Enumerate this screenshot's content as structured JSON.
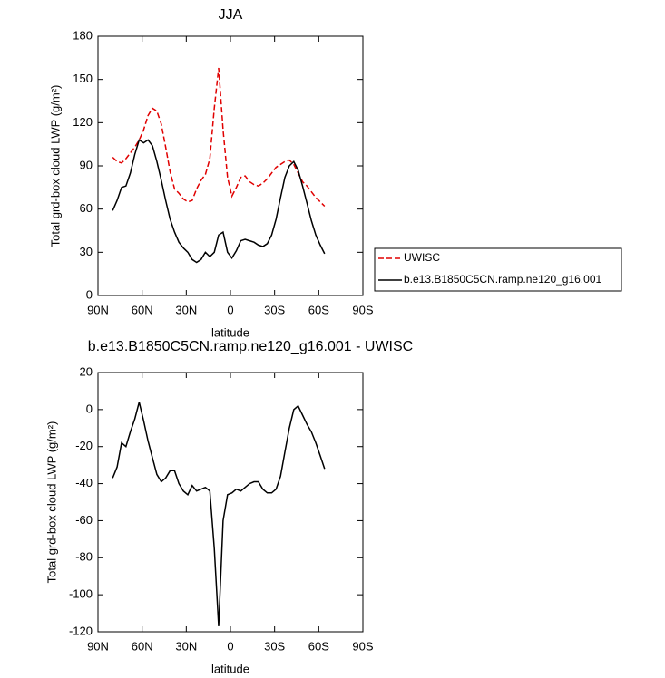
{
  "chart_data": [
    {
      "type": "line",
      "title": "JJA",
      "xlabel": "latitude",
      "ylabel": "Total grd-box cloud LWP (g/m²)",
      "x": [
        80,
        77,
        74,
        71,
        68,
        65,
        62,
        59,
        56,
        53,
        50,
        47,
        44,
        41,
        38,
        35,
        32,
        29,
        26,
        23,
        20,
        17,
        14,
        11,
        8,
        5,
        2,
        -1,
        -4,
        -7,
        -10,
        -13,
        -16,
        -19,
        -22,
        -25,
        -28,
        -31,
        -34,
        -37,
        -40,
        -43,
        -46,
        -49,
        -52,
        -55,
        -58,
        -61,
        -64
      ],
      "series": [
        {
          "name": "UWISC",
          "color": "#e00000",
          "dashed": true,
          "values": [
            96,
            93,
            92,
            95,
            99,
            103,
            108,
            115,
            125,
            130,
            128,
            119,
            103,
            86,
            74,
            71,
            67,
            65,
            66,
            74,
            80,
            84,
            95,
            130,
            158,
            115,
            82,
            69,
            75,
            82,
            83,
            79,
            77,
            76,
            78,
            81,
            85,
            89,
            91,
            93,
            94,
            91,
            85,
            79,
            76,
            72,
            68,
            65,
            62
          ]
        },
        {
          "name": "b.e13.B1850C5CN.ramp.ne120_g16.001",
          "color": "#000000",
          "dashed": false,
          "values": [
            59,
            66,
            75,
            76,
            85,
            98,
            108,
            106,
            108,
            104,
            93,
            80,
            66,
            53,
            44,
            37,
            33,
            30,
            25,
            23,
            25,
            30,
            27,
            30,
            42,
            44,
            30,
            26,
            31,
            38,
            39,
            38,
            37,
            35,
            34,
            36,
            42,
            53,
            68,
            82,
            90,
            93,
            87,
            76,
            64,
            52,
            42,
            35,
            29
          ]
        }
      ],
      "xlim": [
        90,
        -90
      ],
      "xticks": [
        {
          "value": 90,
          "label": "90N"
        },
        {
          "value": 60,
          "label": "60N"
        },
        {
          "value": 30,
          "label": "30N"
        },
        0,
        {
          "value": -30,
          "label": "30S"
        },
        {
          "value": -60,
          "label": "60S"
        },
        {
          "value": -90,
          "label": "90S"
        }
      ],
      "ylim": [
        0,
        180
      ],
      "yticks": [
        0,
        30,
        60,
        90,
        120,
        150,
        180
      ],
      "legend": "right"
    },
    {
      "type": "line",
      "title": "b.e13.B1850C5CN.ramp.ne120_g16.001 - UWISC",
      "xlabel": "latitude",
      "ylabel": "Total grd-box cloud LWP (g/m²)",
      "x": [
        80,
        77,
        74,
        71,
        68,
        65,
        62,
        59,
        56,
        53,
        50,
        47,
        44,
        41,
        38,
        35,
        32,
        29,
        26,
        23,
        20,
        17,
        14,
        11,
        8,
        5,
        2,
        -1,
        -4,
        -7,
        -10,
        -13,
        -16,
        -19,
        -22,
        -25,
        -28,
        -31,
        -34,
        -37,
        -40,
        -43,
        -46,
        -49,
        -52,
        -55,
        -58,
        -61,
        -64
      ],
      "series": [
        {
          "color": "#000000",
          "dashed": false,
          "values": [
            -37,
            -31,
            -18,
            -20,
            -12,
            -5,
            4,
            -6,
            -17,
            -26,
            -35,
            -39,
            -37,
            -33,
            -33,
            -40,
            -44,
            -46,
            -41,
            -44,
            -43,
            -42,
            -44,
            -75,
            -117,
            -60,
            -46,
            -45,
            -43,
            -44,
            -42,
            -40,
            -39,
            -39,
            -43,
            -45,
            -45,
            -43,
            -36,
            -23,
            -10,
            0,
            2,
            -3,
            -8,
            -12,
            -18,
            -25,
            -32
          ]
        }
      ],
      "xlim": [
        90,
        -90
      ],
      "xticks": [
        {
          "value": 90,
          "label": "90N"
        },
        {
          "value": 60,
          "label": "60N"
        },
        {
          "value": 30,
          "label": "30N"
        },
        0,
        {
          "value": -30,
          "label": "30S"
        },
        {
          "value": -60,
          "label": "60S"
        },
        {
          "value": -90,
          "label": "90S"
        }
      ],
      "ylim": [
        -120,
        20
      ],
      "yticks": [
        -120,
        -100,
        -80,
        -60,
        -40,
        -20,
        0,
        20
      ]
    }
  ]
}
